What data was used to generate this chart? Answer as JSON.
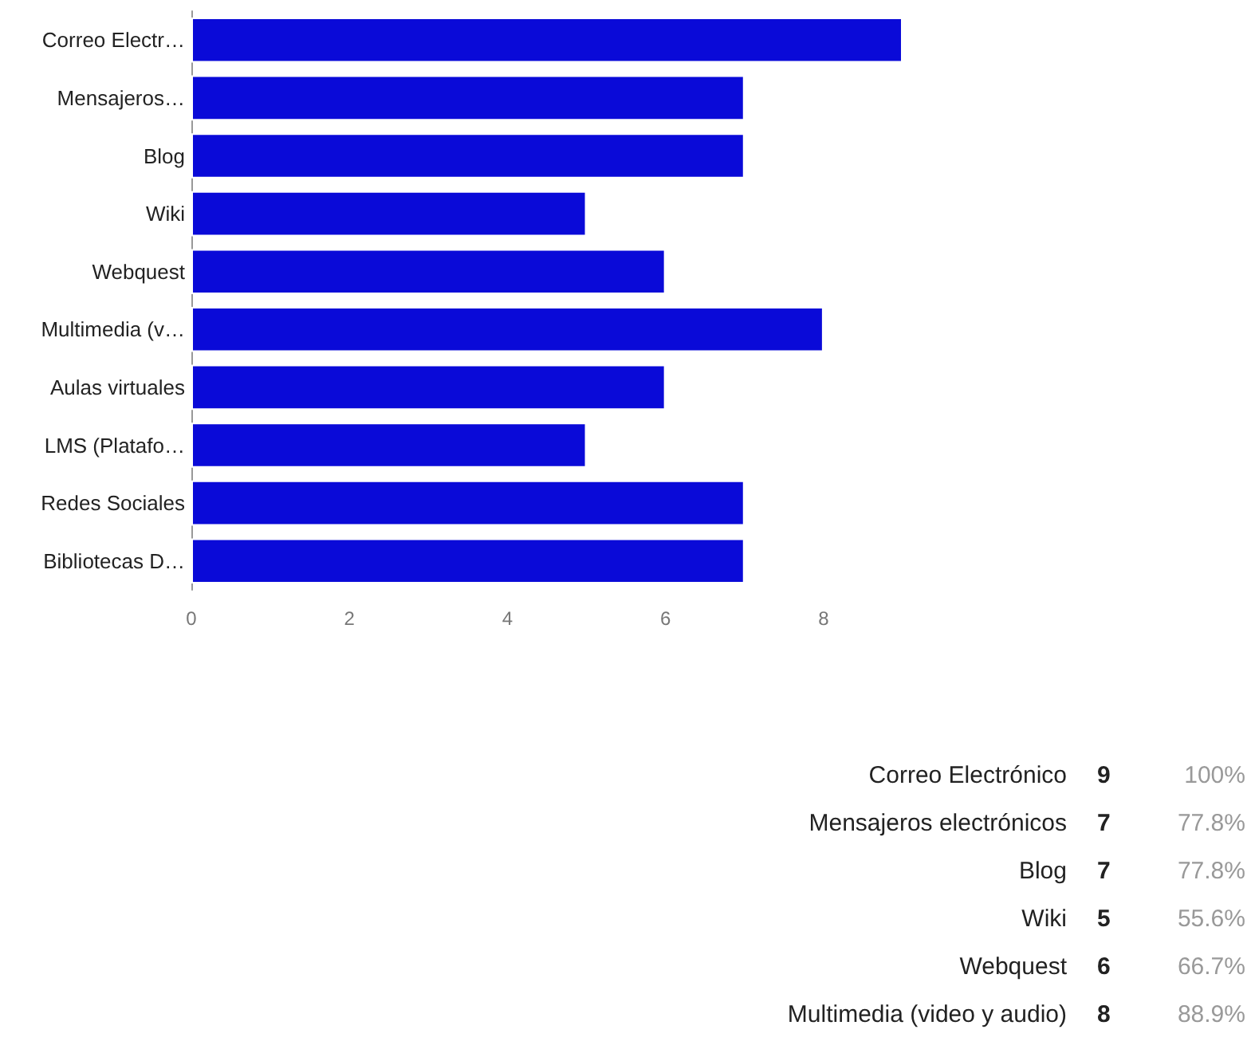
{
  "chart_data": [
    {
      "type": "bar",
      "orientation": "horizontal",
      "categories": [
        "Correo Electr…",
        "Mensajeros…",
        "Blog",
        "Wiki",
        "Webquest",
        "Multimedia (v…",
        "Aulas virtuales",
        "LMS (Platafo…",
        "Redes Sociales",
        "Bibliotecas D…"
      ],
      "values": [
        9,
        7,
        7,
        5,
        6,
        8,
        6,
        5,
        7,
        7
      ],
      "color": "#0a0ad8",
      "xlim": [
        0,
        9
      ],
      "xticks": [
        0,
        2,
        4,
        6,
        8
      ],
      "grid": false
    },
    {
      "type": "other",
      "categories": [
        "Correo Electrónico",
        "Mensajeros electrónicos",
        "Blog",
        "Wiki",
        "Webquest",
        "Multimedia (video y audio)"
      ],
      "data_labels": true,
      "series": [
        {
          "values": [
            9,
            7,
            7,
            5,
            6,
            8
          ]
        },
        {
          "values": [
            100,
            77.8,
            77.8,
            55.6,
            66.7,
            88.9
          ],
          "value_labels": [
            "100%",
            "77.8%",
            "77.8%",
            "55.6%",
            "66.7%",
            "88.9%"
          ]
        }
      ]
    }
  ]
}
